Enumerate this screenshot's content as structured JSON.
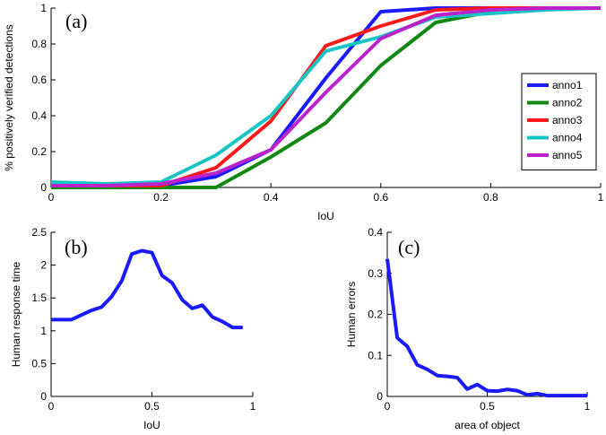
{
  "chart_data": [
    {
      "id": "a",
      "type": "line",
      "panel_label": "(a)",
      "xlabel": "IoU",
      "ylabel": "% positively verified detections",
      "xlim": [
        0,
        1
      ],
      "ylim": [
        0,
        1
      ],
      "xticks": [
        0,
        0.2,
        0.4,
        0.6,
        0.8,
        1
      ],
      "xtick_labels": [
        "0",
        "0.2",
        "0.4",
        "0.6",
        "0.8",
        "1"
      ],
      "yticks": [
        0,
        0.2,
        0.4,
        0.6,
        0.8,
        1
      ],
      "ytick_labels": [
        "0",
        "0.2",
        "0.4",
        "0.6",
        "0.8",
        "1"
      ],
      "legend_position": "right",
      "x": [
        0,
        0.1,
        0.2,
        0.3,
        0.4,
        0.5,
        0.6,
        0.7,
        0.8,
        0.9,
        1.0
      ],
      "series": [
        {
          "name": "anno1",
          "color": "#1a1aff",
          "values": [
            0.01,
            0.01,
            0.01,
            0.06,
            0.21,
            0.61,
            0.98,
            1.0,
            1.0,
            1.0,
            1.0
          ]
        },
        {
          "name": "anno2",
          "color": "#118811",
          "values": [
            0.0,
            0.0,
            0.0,
            0.0,
            0.17,
            0.36,
            0.68,
            0.92,
            0.98,
            1.0,
            1.0
          ]
        },
        {
          "name": "anno3",
          "color": "#ff1a1a",
          "values": [
            0.01,
            0.01,
            0.01,
            0.11,
            0.37,
            0.79,
            0.9,
            0.99,
            1.0,
            1.0,
            1.0
          ]
        },
        {
          "name": "anno4",
          "color": "#19c4c4",
          "values": [
            0.03,
            0.02,
            0.03,
            0.18,
            0.4,
            0.76,
            0.84,
            0.95,
            0.97,
            0.99,
            1.0
          ]
        },
        {
          "name": "anno5",
          "color": "#bb22cc",
          "values": [
            0.01,
            0.01,
            0.02,
            0.08,
            0.21,
            0.53,
            0.83,
            0.96,
            0.99,
            1.0,
            1.0
          ]
        }
      ]
    },
    {
      "id": "b",
      "type": "line",
      "panel_label": "(b)",
      "xlabel": "IoU",
      "ylabel": "Human response time",
      "xlim": [
        0,
        1
      ],
      "ylim": [
        0,
        2.5
      ],
      "xticks": [
        0,
        0.5,
        1
      ],
      "xtick_labels": [
        "0",
        "0.5",
        "1"
      ],
      "yticks": [
        0,
        0.5,
        1,
        1.5,
        2,
        2.5
      ],
      "ytick_labels": [
        "0",
        "0.5",
        "1",
        "1.5",
        "2",
        "2.5"
      ],
      "series": [
        {
          "color": "#1a1aff",
          "x": [
            0,
            0.1,
            0.15,
            0.2,
            0.25,
            0.3,
            0.35,
            0.4,
            0.45,
            0.5,
            0.55,
            0.6,
            0.65,
            0.7,
            0.75,
            0.8,
            0.85,
            0.9,
            0.95
          ],
          "values": [
            1.17,
            1.17,
            1.24,
            1.31,
            1.36,
            1.52,
            1.76,
            2.17,
            2.22,
            2.19,
            1.84,
            1.73,
            1.47,
            1.34,
            1.39,
            1.21,
            1.14,
            1.05,
            1.05
          ]
        }
      ]
    },
    {
      "id": "c",
      "type": "line",
      "panel_label": "(c)",
      "xlabel": "area of object",
      "ylabel": "Human errors",
      "xlim": [
        0,
        1
      ],
      "ylim": [
        0,
        0.4
      ],
      "xticks": [
        0,
        0.5,
        1
      ],
      "xtick_labels": [
        "0",
        "0.5",
        "1"
      ],
      "yticks": [
        0,
        0.1,
        0.2,
        0.3,
        0.4
      ],
      "ytick_labels": [
        "0",
        "0.1",
        "0.2",
        "0.3",
        "0.4"
      ],
      "series": [
        {
          "color": "#1a1aff",
          "x": [
            0,
            0.05,
            0.1,
            0.15,
            0.2,
            0.25,
            0.3,
            0.35,
            0.4,
            0.45,
            0.5,
            0.55,
            0.6,
            0.65,
            0.7,
            0.75,
            0.8,
            0.85,
            0.9,
            0.95,
            1.0
          ],
          "values": [
            0.335,
            0.143,
            0.122,
            0.077,
            0.066,
            0.051,
            0.049,
            0.046,
            0.018,
            0.029,
            0.014,
            0.013,
            0.017,
            0.014,
            0.004,
            0.007,
            0.002,
            0.002,
            0.002,
            0.002,
            0.002
          ]
        }
      ]
    }
  ]
}
